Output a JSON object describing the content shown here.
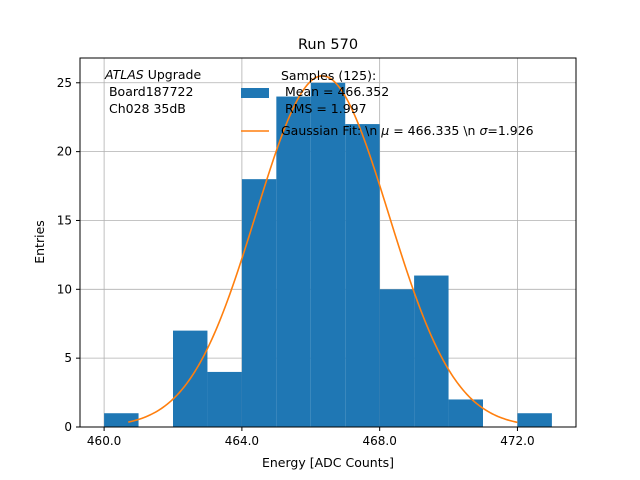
{
  "chart_data": {
    "type": "bar",
    "title": "Run 570",
    "xlabel": "Energy [ADC Counts]",
    "ylabel": "Entries",
    "xlim": [
      459.3,
      473.7
    ],
    "ylim": [
      0,
      26.8
    ],
    "xticks": [
      460.0,
      464.0,
      468.0,
      472.0
    ],
    "xtick_labels": [
      "460.0",
      "464.0",
      "468.0",
      "472.0"
    ],
    "yticks": [
      0,
      5,
      10,
      15,
      20,
      25
    ],
    "ytick_labels": [
      "0",
      "5",
      "10",
      "15",
      "20",
      "25"
    ],
    "grid": true,
    "bin_edges": [
      460,
      461,
      462,
      463,
      464,
      465,
      466,
      467,
      468,
      469,
      470,
      471,
      472,
      473
    ],
    "counts": [
      1,
      0,
      7,
      4,
      18,
      24,
      25,
      22,
      10,
      11,
      2,
      0,
      1
    ],
    "bar_color": "#1f77b4",
    "fit": {
      "type": "gaussian",
      "mu": 466.335,
      "sigma": 1.926,
      "amplitude": 25.5,
      "x_range": [
        460.7,
        472.0
      ],
      "color": "#ff7f0e"
    },
    "annotation_lines": [
      "ATLAS Upgrade",
      " Board187722",
      " Ch028 35dB"
    ],
    "annotation_italic_word": "ATLAS",
    "annotation_rest": " Upgrade",
    "legend": {
      "placement": "upper-center",
      "hist_label_lines": [
        "Samples (125):",
        " Mean = 466.352",
        " RMS = 1.997"
      ],
      "fit_label_prefix": "Gaussian Fit: \\n ",
      "fit_label_mu_symbol": "μ",
      "fit_label_mid": " = 466.335 \\n ",
      "fit_label_sigma_symbol": "σ",
      "fit_label_suffix": "=1.926"
    }
  }
}
